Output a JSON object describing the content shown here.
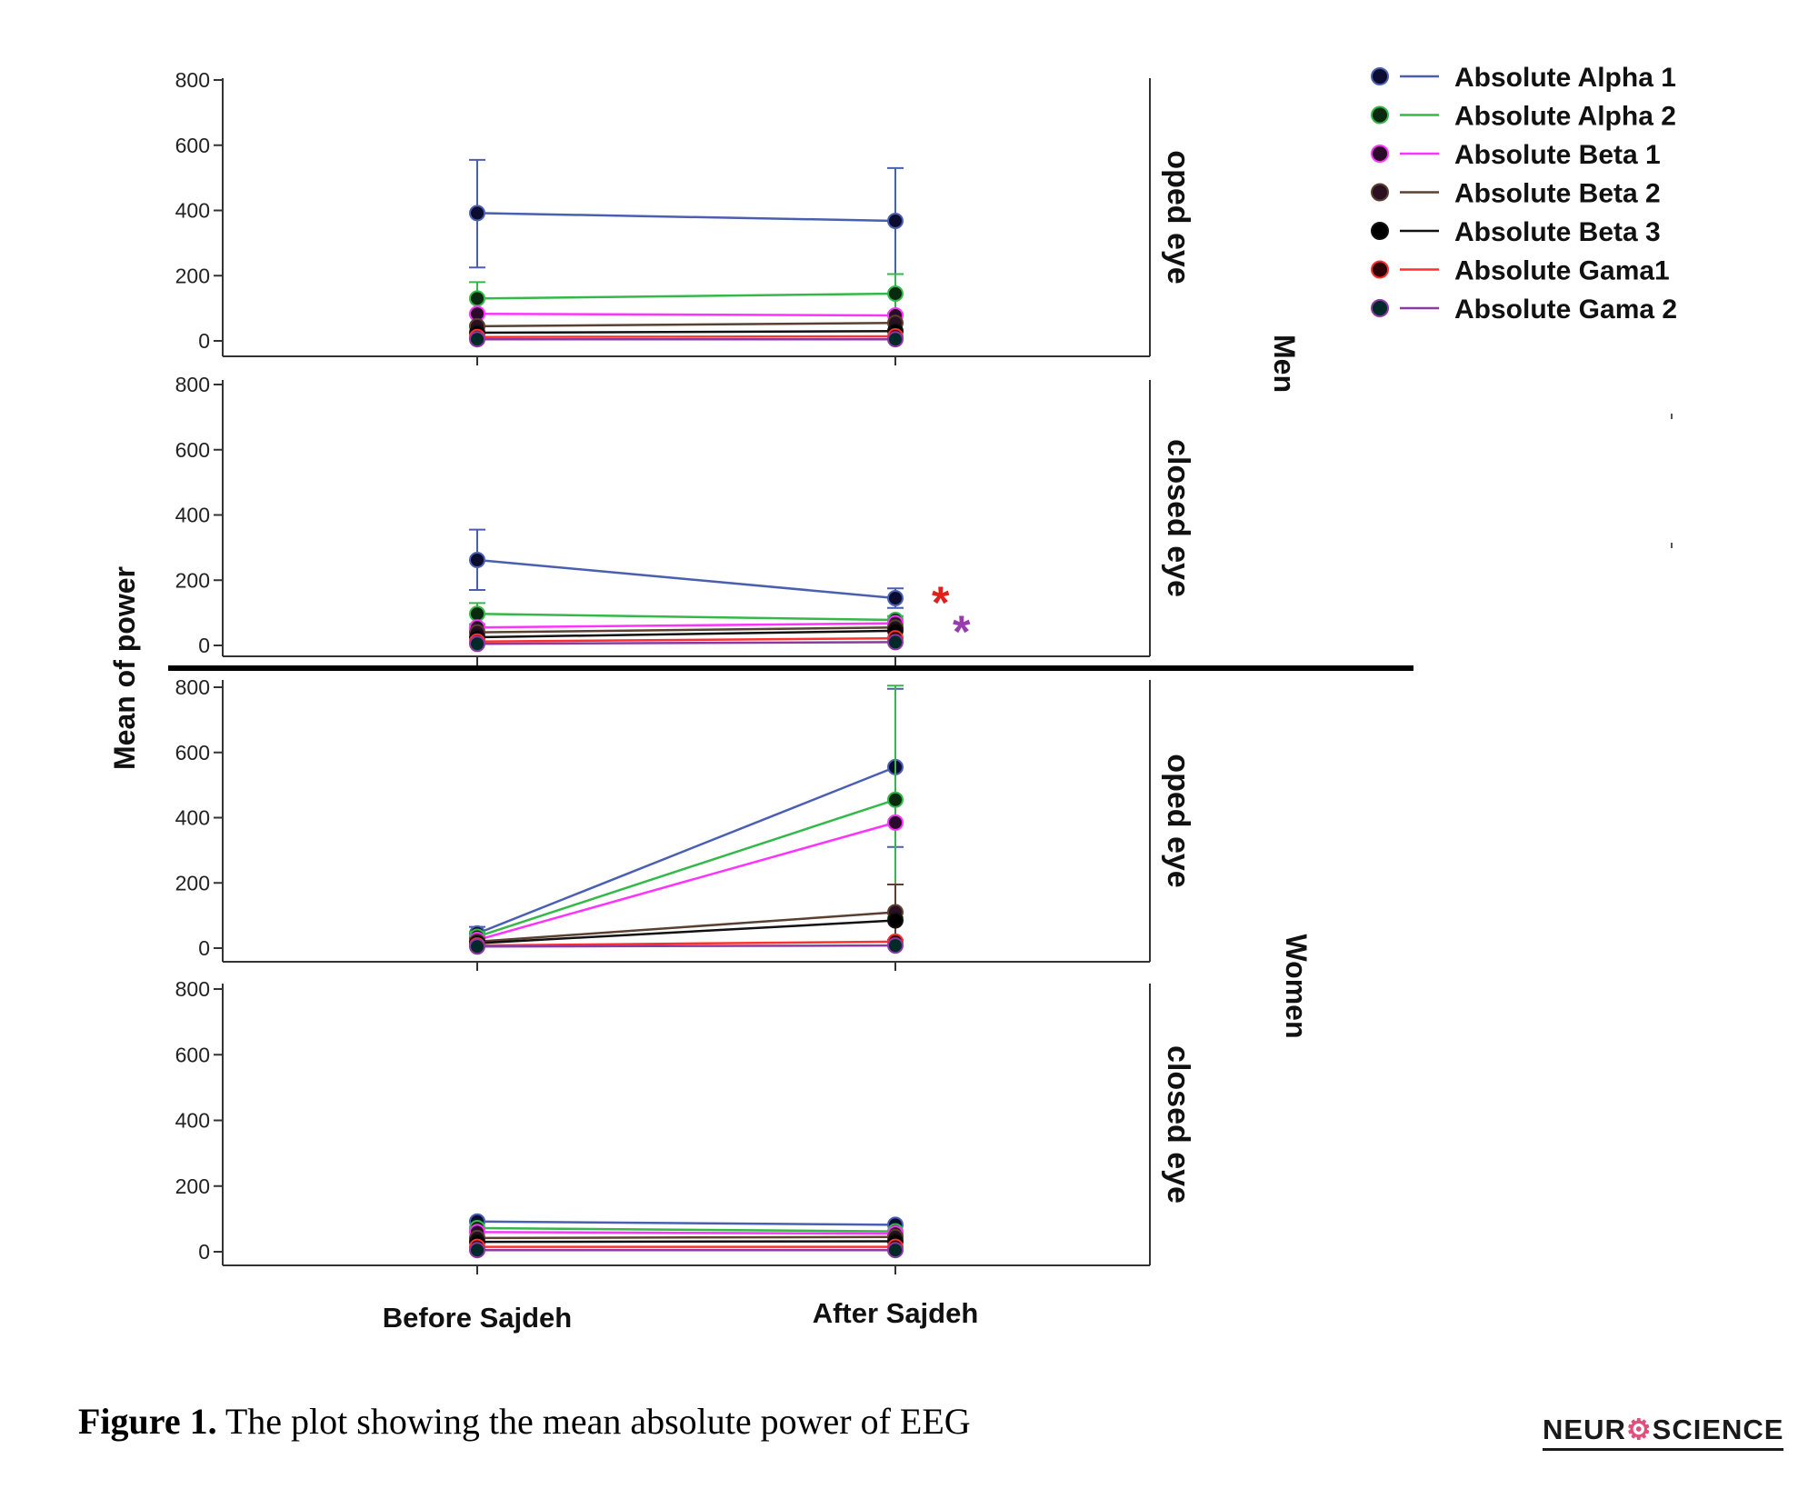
{
  "figure": {
    "caption_lead": "Figure 1.",
    "caption_text": " The plot showing the mean absolute power of EEG",
    "logo_left": "NEUR",
    "logo_mid": "⚙",
    "logo_right": "SCIENCE"
  },
  "chart_data": {
    "type": "line",
    "ylabel": "Mean of power",
    "categories": [
      "Before Sajdeh",
      "After Sajdeh"
    ],
    "ylim": [
      0,
      800
    ],
    "yticks": [
      0,
      200,
      400,
      600,
      800
    ],
    "grid": false,
    "legend_position": "top-right",
    "groups": [
      "Men",
      "Women"
    ],
    "series_meta": [
      {
        "name": "Absolute Alpha 1",
        "color": "#4a5fb0",
        "marker": "#0c0c30"
      },
      {
        "name": "Absolute Alpha 2",
        "color": "#35b84a",
        "marker": "#0a2a10"
      },
      {
        "name": "Absolute Beta 1",
        "color": "#ff33ff",
        "marker": "#2a0a2a"
      },
      {
        "name": "Absolute Beta 2",
        "color": "#5a4030",
        "marker": "#2a1020"
      },
      {
        "name": "Absolute Beta 3",
        "color": "#111111",
        "marker": "#000000"
      },
      {
        "name": "Absolute Gama1",
        "color": "#ff3030",
        "marker": "#300000"
      },
      {
        "name": "Absolute Gama 2",
        "color": "#8a3aa0",
        "marker": "#002a2a"
      }
    ],
    "panels": [
      {
        "group": "Men",
        "condition": "oped eye",
        "series": [
          {
            "name": "Absolute Alpha 1",
            "values": [
              392,
              368
            ],
            "err": [
              [
                225,
                555
              ],
              [
                205,
                530
              ]
            ]
          },
          {
            "name": "Absolute Alpha 2",
            "values": [
              130,
              145
            ],
            "err": [
              [
                80,
                180
              ],
              [
                85,
                205
              ]
            ]
          },
          {
            "name": "Absolute Beta 1",
            "values": [
              83,
              78
            ],
            "err": null
          },
          {
            "name": "Absolute Beta 2",
            "values": [
              45,
              55
            ],
            "err": null
          },
          {
            "name": "Absolute Beta 3",
            "values": [
              25,
              30
            ],
            "err": null
          },
          {
            "name": "Absolute Gama1",
            "values": [
              12,
              14
            ],
            "err": null
          },
          {
            "name": "Absolute Gama 2",
            "values": [
              5,
              5
            ],
            "err": null
          }
        ]
      },
      {
        "group": "Men",
        "condition": "closed eye",
        "series": [
          {
            "name": "Absolute Alpha 1",
            "values": [
              262,
              145
            ],
            "err": [
              [
                170,
                355
              ],
              [
                115,
                175
              ]
            ]
          },
          {
            "name": "Absolute Alpha 2",
            "values": [
              97,
              78
            ],
            "err": [
              [
                65,
                130
              ],
              [
                65,
                90
              ]
            ]
          },
          {
            "name": "Absolute Beta 1",
            "values": [
              55,
              68
            ],
            "err": null
          },
          {
            "name": "Absolute Beta 2",
            "values": [
              40,
              55
            ],
            "err": null
          },
          {
            "name": "Absolute Beta 3",
            "values": [
              25,
              45
            ],
            "err": null
          },
          {
            "name": "Absolute Gama1",
            "values": [
              12,
              22
            ],
            "err": null
          },
          {
            "name": "Absolute Gama 2",
            "values": [
              5,
              10
            ],
            "err": null
          }
        ],
        "annotations": [
          {
            "text": "*",
            "color": "#e0201a"
          },
          {
            "text": "*",
            "color": "#9a3ab0"
          }
        ]
      },
      {
        "group": "Women",
        "condition": "oped eye",
        "series": [
          {
            "name": "Absolute Alpha 1",
            "values": [
              45,
              555
            ],
            "err": [
              [
                25,
                65
              ],
              [
                310,
                795
              ]
            ]
          },
          {
            "name": "Absolute Alpha 2",
            "values": [
              35,
              455
            ],
            "err": [
              [
                20,
                50
              ],
              [
                95,
                805
              ]
            ]
          },
          {
            "name": "Absolute Beta 1",
            "values": [
              25,
              385
            ],
            "err": null
          },
          {
            "name": "Absolute Beta 2",
            "values": [
              20,
              110
            ],
            "err": [
              [
                10,
                30
              ],
              [
                25,
                195
              ]
            ]
          },
          {
            "name": "Absolute Beta 3",
            "values": [
              15,
              85
            ],
            "err": null
          },
          {
            "name": "Absolute Gama1",
            "values": [
              8,
              20
            ],
            "err": null
          },
          {
            "name": "Absolute Gama 2",
            "values": [
              5,
              8
            ],
            "err": null
          }
        ]
      },
      {
        "group": "Women",
        "condition": "closed eye",
        "series": [
          {
            "name": "Absolute Alpha 1",
            "values": [
              92,
              82
            ],
            "err": null
          },
          {
            "name": "Absolute Alpha 2",
            "values": [
              72,
              62
            ],
            "err": null
          },
          {
            "name": "Absolute Beta 1",
            "values": [
              60,
              55
            ],
            "err": null
          },
          {
            "name": "Absolute Beta 2",
            "values": [
              42,
              45
            ],
            "err": null
          },
          {
            "name": "Absolute Beta 3",
            "values": [
              30,
              32
            ],
            "err": null
          },
          {
            "name": "Absolute Gama1",
            "values": [
              15,
              15
            ],
            "err": null
          },
          {
            "name": "Absolute Gama 2",
            "values": [
              5,
              5
            ],
            "err": null
          }
        ]
      }
    ]
  }
}
